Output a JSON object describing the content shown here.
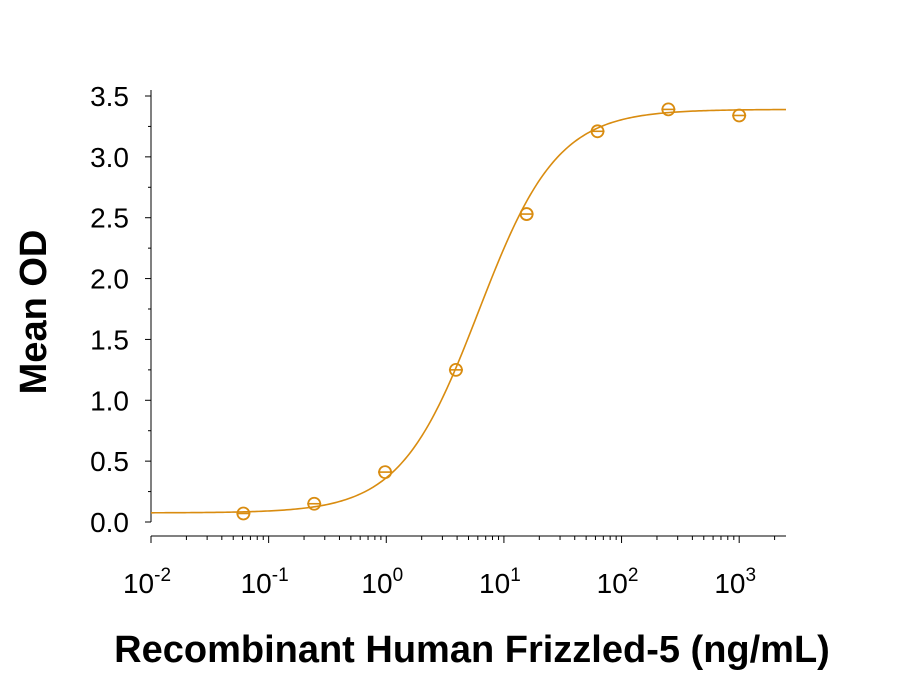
{
  "chart_data": {
    "type": "scatter",
    "title": "",
    "xlabel": "Recombinant Human Frizzled-5 (ng/mL)",
    "ylabel": "Mean OD",
    "xscale": "log",
    "xlim": [
      0.01,
      2500
    ],
    "ylim": [
      0,
      3.5
    ],
    "grid": false,
    "color": "#D98C10",
    "x_ticks": [
      {
        "base": "10",
        "exp": "-2",
        "value": 0.01
      },
      {
        "base": "10",
        "exp": "-1",
        "value": 0.1
      },
      {
        "base": "10",
        "exp": "0",
        "value": 1
      },
      {
        "base": "10",
        "exp": "1",
        "value": 10
      },
      {
        "base": "10",
        "exp": "2",
        "value": 100
      },
      {
        "base": "10",
        "exp": "3",
        "value": 1000
      }
    ],
    "y_ticks": [
      "0.0",
      "0.5",
      "1.0",
      "1.5",
      "2.0",
      "2.5",
      "3.0",
      "3.5"
    ],
    "series": [
      {
        "x": [
          0.061,
          0.244,
          0.977,
          3.91,
          15.6,
          62.5,
          250,
          1000
        ],
        "y": [
          0.07,
          0.15,
          0.41,
          1.25,
          2.53,
          3.21,
          3.39,
          3.34
        ]
      }
    ],
    "fit": {
      "model": "4PL",
      "bottom": 0.075,
      "top": 3.39,
      "ec50": 6.1,
      "hill": 1.3
    }
  }
}
